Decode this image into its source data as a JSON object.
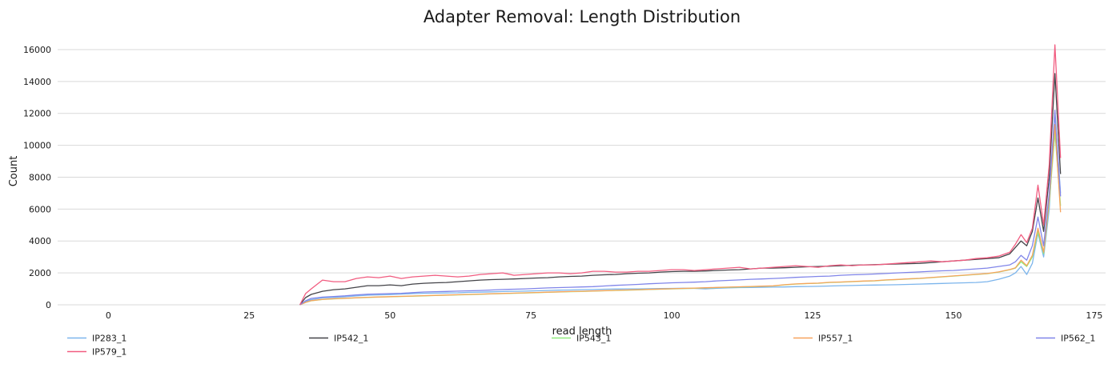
{
  "chart_data": {
    "type": "line",
    "title": "Adapter Removal: Length Distribution",
    "xlabel": "read length",
    "ylabel": "Count",
    "xlim": [
      -9,
      177
    ],
    "ylim": [
      0,
      16800
    ],
    "xticks": [
      0,
      25,
      50,
      75,
      100,
      125,
      150,
      175
    ],
    "yticks": [
      0,
      2000,
      4000,
      6000,
      8000,
      10000,
      12000,
      14000,
      16000
    ],
    "grid": "horizontal",
    "legend_position": "bottom",
    "series": [
      {
        "name": "IP283_1",
        "color": "#7cb5ec",
        "x": [
          34,
          35,
          36,
          38,
          40,
          42,
          44,
          46,
          48,
          50,
          52,
          54,
          56,
          58,
          60,
          62,
          64,
          66,
          68,
          70,
          72,
          74,
          76,
          78,
          80,
          82,
          84,
          86,
          88,
          90,
          92,
          94,
          96,
          98,
          100,
          102,
          104,
          106,
          108,
          110,
          112,
          114,
          116,
          118,
          120,
          122,
          124,
          126,
          128,
          130,
          132,
          134,
          136,
          138,
          140,
          142,
          144,
          146,
          148,
          150,
          152,
          154,
          156,
          158,
          160,
          161,
          162,
          163,
          164,
          165,
          166,
          167,
          168,
          169
        ],
        "y": [
          0,
          200,
          320,
          430,
          460,
          500,
          560,
          600,
          620,
          640,
          670,
          700,
          720,
          730,
          740,
          750,
          780,
          790,
          810,
          830,
          850,
          860,
          880,
          900,
          920,
          930,
          950,
          960,
          980,
          990,
          1000,
          1000,
          1010,
          1020,
          1030,
          1040,
          1030,
          1000,
          1040,
          1060,
          1080,
          1090,
          1100,
          1110,
          1120,
          1140,
          1150,
          1160,
          1180,
          1200,
          1210,
          1230,
          1240,
          1250,
          1260,
          1280,
          1300,
          1320,
          1340,
          1360,
          1380,
          1400,
          1450,
          1600,
          1800,
          2000,
          2400,
          1900,
          2600,
          4500,
          3000,
          6000,
          12000,
          7000
        ]
      },
      {
        "name": "IP542_1",
        "color": "#434348",
        "x": [
          34,
          35,
          36,
          38,
          40,
          42,
          44,
          46,
          48,
          50,
          52,
          54,
          56,
          58,
          60,
          62,
          64,
          66,
          68,
          70,
          72,
          74,
          76,
          78,
          80,
          82,
          84,
          86,
          88,
          90,
          92,
          94,
          96,
          98,
          100,
          102,
          104,
          106,
          108,
          110,
          112,
          114,
          116,
          118,
          120,
          122,
          124,
          126,
          128,
          130,
          132,
          134,
          136,
          138,
          140,
          142,
          144,
          146,
          148,
          150,
          152,
          154,
          156,
          158,
          160,
          161,
          162,
          163,
          164,
          165,
          166,
          167,
          168,
          169
        ],
        "y": [
          0,
          450,
          650,
          850,
          950,
          1000,
          1100,
          1200,
          1200,
          1250,
          1200,
          1300,
          1350,
          1380,
          1400,
          1450,
          1500,
          1550,
          1580,
          1600,
          1620,
          1650,
          1680,
          1700,
          1750,
          1780,
          1800,
          1850,
          1880,
          1900,
          1950,
          1980,
          2000,
          2050,
          2080,
          2100,
          2100,
          2120,
          2150,
          2180,
          2200,
          2250,
          2300,
          2300,
          2320,
          2350,
          2380,
          2400,
          2420,
          2450,
          2480,
          2500,
          2520,
          2540,
          2560,
          2580,
          2600,
          2650,
          2700,
          2750,
          2800,
          2850,
          2900,
          2950,
          3200,
          3600,
          4000,
          3700,
          4600,
          6700,
          4600,
          8000,
          14500,
          8200
        ]
      },
      {
        "name": "IP543_1",
        "color": "#90ed7d",
        "x": [
          34,
          35,
          36,
          38,
          40,
          42,
          44,
          46,
          48,
          50,
          52,
          54,
          56,
          58,
          60,
          62,
          64,
          66,
          68,
          70,
          72,
          74,
          76,
          78,
          80,
          82,
          84,
          86,
          88,
          90,
          92,
          94,
          96,
          98,
          100,
          102,
          104,
          106,
          108,
          110,
          112,
          114,
          116,
          118,
          120,
          122,
          124,
          126,
          128,
          130,
          132,
          134,
          136,
          138,
          140,
          142,
          144,
          146,
          148,
          150,
          152,
          154,
          156,
          158,
          160,
          161,
          162,
          163,
          164,
          165,
          166,
          167,
          168,
          169
        ],
        "y": [
          0,
          150,
          250,
          330,
          370,
          400,
          430,
          460,
          480,
          500,
          520,
          540,
          560,
          580,
          600,
          620,
          640,
          660,
          680,
          700,
          720,
          740,
          760,
          780,
          800,
          820,
          840,
          860,
          880,
          900,
          920,
          940,
          960,
          980,
          1000,
          1020,
          1040,
          1060,
          1080,
          1100,
          1120,
          1140,
          1160,
          1180,
          1250,
          1300,
          1330,
          1350,
          1400,
          1420,
          1450,
          1480,
          1500,
          1550,
          1580,
          1620,
          1650,
          1700,
          1750,
          1800,
          1850,
          1900,
          1950,
          2050,
          2200,
          2300,
          2700,
          2400,
          3000,
          4600,
          3200,
          6400,
          10800,
          6200
        ]
      },
      {
        "name": "IP557_1",
        "color": "#f7a35c",
        "x": [
          34,
          35,
          36,
          38,
          40,
          42,
          44,
          46,
          48,
          50,
          52,
          54,
          56,
          58,
          60,
          62,
          64,
          66,
          68,
          70,
          72,
          74,
          76,
          78,
          80,
          82,
          84,
          86,
          88,
          90,
          92,
          94,
          96,
          98,
          100,
          102,
          104,
          106,
          108,
          110,
          112,
          114,
          116,
          118,
          120,
          122,
          124,
          126,
          128,
          130,
          132,
          134,
          136,
          138,
          140,
          142,
          144,
          146,
          148,
          150,
          152,
          154,
          156,
          158,
          160,
          161,
          162,
          163,
          164,
          165,
          166,
          167,
          168,
          169
        ],
        "y": [
          0,
          150,
          260,
          340,
          380,
          410,
          440,
          470,
          490,
          510,
          530,
          550,
          570,
          590,
          610,
          630,
          650,
          670,
          690,
          710,
          730,
          750,
          770,
          790,
          810,
          830,
          850,
          870,
          890,
          910,
          930,
          950,
          970,
          990,
          1010,
          1030,
          1050,
          1070,
          1090,
          1110,
          1130,
          1150,
          1170,
          1190,
          1260,
          1310,
          1340,
          1360,
          1410,
          1430,
          1460,
          1490,
          1510,
          1560,
          1590,
          1630,
          1660,
          1710,
          1760,
          1810,
          1860,
          1910,
          1960,
          2060,
          2210,
          2320,
          2800,
          2450,
          3100,
          4800,
          3300,
          6600,
          11300,
          5800
        ]
      },
      {
        "name": "IP562_1",
        "color": "#8085e9",
        "x": [
          34,
          35,
          36,
          38,
          40,
          42,
          44,
          46,
          48,
          50,
          52,
          54,
          56,
          58,
          60,
          62,
          64,
          66,
          68,
          70,
          72,
          74,
          76,
          78,
          80,
          82,
          84,
          86,
          88,
          90,
          92,
          94,
          96,
          98,
          100,
          102,
          104,
          106,
          108,
          110,
          112,
          114,
          116,
          118,
          120,
          122,
          124,
          126,
          128,
          130,
          132,
          134,
          136,
          138,
          140,
          142,
          144,
          146,
          148,
          150,
          152,
          154,
          156,
          158,
          160,
          161,
          162,
          163,
          164,
          165,
          166,
          167,
          168,
          169
        ],
        "y": [
          0,
          250,
          400,
          480,
          520,
          560,
          620,
          660,
          680,
          700,
          720,
          760,
          800,
          820,
          840,
          860,
          880,
          900,
          930,
          960,
          980,
          1000,
          1030,
          1060,
          1080,
          1100,
          1120,
          1140,
          1180,
          1220,
          1250,
          1280,
          1320,
          1350,
          1380,
          1400,
          1420,
          1450,
          1500,
          1530,
          1560,
          1600,
          1620,
          1650,
          1680,
          1720,
          1750,
          1780,
          1800,
          1850,
          1880,
          1900,
          1930,
          1960,
          2000,
          2030,
          2060,
          2100,
          2130,
          2150,
          2200,
          2250,
          2300,
          2400,
          2500,
          2700,
          3100,
          2800,
          3700,
          5500,
          3700,
          7000,
          12200,
          6800
        ]
      },
      {
        "name": "IP579_1",
        "color": "#f15c80",
        "x": [
          34,
          35,
          36,
          38,
          40,
          42,
          44,
          46,
          48,
          50,
          52,
          54,
          56,
          58,
          60,
          62,
          64,
          66,
          68,
          70,
          72,
          74,
          76,
          78,
          80,
          82,
          84,
          86,
          88,
          90,
          92,
          94,
          96,
          98,
          100,
          102,
          104,
          106,
          108,
          110,
          112,
          114,
          116,
          118,
          120,
          122,
          124,
          126,
          128,
          130,
          132,
          134,
          136,
          138,
          140,
          142,
          144,
          146,
          148,
          150,
          152,
          154,
          156,
          158,
          160,
          161,
          162,
          163,
          164,
          165,
          166,
          167,
          168,
          169
        ],
        "y": [
          0,
          700,
          1000,
          1550,
          1450,
          1450,
          1650,
          1750,
          1700,
          1800,
          1650,
          1750,
          1800,
          1850,
          1800,
          1750,
          1800,
          1900,
          1950,
          2000,
          1850,
          1900,
          1950,
          2000,
          2000,
          1950,
          2000,
          2100,
          2100,
          2050,
          2050,
          2100,
          2100,
          2150,
          2200,
          2200,
          2150,
          2200,
          2250,
          2300,
          2350,
          2250,
          2300,
          2350,
          2400,
          2450,
          2400,
          2350,
          2450,
          2500,
          2450,
          2500,
          2500,
          2550,
          2600,
          2650,
          2700,
          2750,
          2700,
          2750,
          2800,
          2900,
          2950,
          3050,
          3300,
          3800,
          4400,
          3900,
          4800,
          7500,
          5000,
          8800,
          16300,
          9200
        ]
      }
    ]
  }
}
